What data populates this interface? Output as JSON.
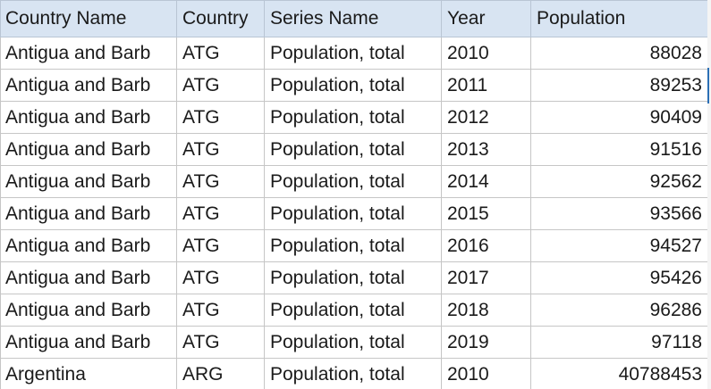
{
  "sheet": {
    "headers": [
      "Country Name",
      "Country",
      "Series Name",
      "Year",
      "Population"
    ],
    "rows": [
      {
        "country_name": "Antigua and Barb",
        "country_code": "ATG",
        "series": "Population, total",
        "year": "2010",
        "population": "88028"
      },
      {
        "country_name": "Antigua and Barb",
        "country_code": "ATG",
        "series": "Population, total",
        "year": "2011",
        "population": "89253"
      },
      {
        "country_name": "Antigua and Barb",
        "country_code": "ATG",
        "series": "Population, total",
        "year": "2012",
        "population": "90409"
      },
      {
        "country_name": "Antigua and Barb",
        "country_code": "ATG",
        "series": "Population, total",
        "year": "2013",
        "population": "91516"
      },
      {
        "country_name": "Antigua and Barb",
        "country_code": "ATG",
        "series": "Population, total",
        "year": "2014",
        "population": "92562"
      },
      {
        "country_name": "Antigua and Barb",
        "country_code": "ATG",
        "series": "Population, total",
        "year": "2015",
        "population": "93566"
      },
      {
        "country_name": "Antigua and Barb",
        "country_code": "ATG",
        "series": "Population, total",
        "year": "2016",
        "population": "94527"
      },
      {
        "country_name": "Antigua and Barb",
        "country_code": "ATG",
        "series": "Population, total",
        "year": "2017",
        "population": "95426"
      },
      {
        "country_name": "Antigua and Barb",
        "country_code": "ATG",
        "series": "Population, total",
        "year": "2018",
        "population": "96286"
      },
      {
        "country_name": "Antigua and Barb",
        "country_code": "ATG",
        "series": "Population, total",
        "year": "2019",
        "population": "97118"
      },
      {
        "country_name": "Argentina",
        "country_code": "ARG",
        "series": "Population, total",
        "year": "2010",
        "population": "40788453"
      }
    ],
    "colors": {
      "header_bg": "#d8e4f2",
      "grid": "#c6c6c6",
      "selection_edge": "#2b6fb5"
    }
  }
}
